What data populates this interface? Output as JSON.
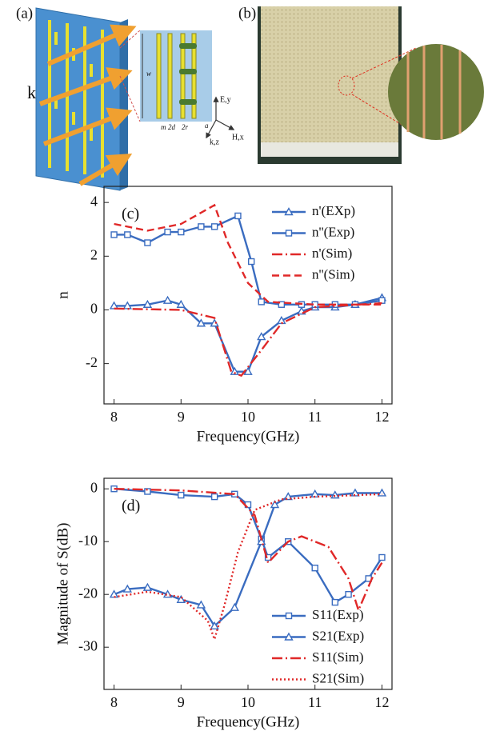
{
  "panels": {
    "a": {
      "label": "(a)",
      "texts": [
        "k",
        "w",
        "m",
        "2d",
        "2r",
        "a",
        "E,y",
        "H,x",
        "k,z"
      ]
    },
    "b": {
      "label": "(b)"
    }
  },
  "chart_data": [
    {
      "type": "line",
      "annotation": "(c)",
      "x_label": "Frequency(GHz)",
      "y_label": "n",
      "xlim": [
        7.85,
        12.15
      ],
      "xticks": [
        8,
        9,
        10,
        11,
        12
      ],
      "ylim": [
        -3.5,
        4.6
      ],
      "yticks": [
        -2,
        0,
        2,
        4
      ],
      "legend": "upper right",
      "series": [
        {
          "name": "n'(EXp)",
          "color": "#3a6cc0",
          "style": "solid",
          "marker": "triangle",
          "x": [
            8.0,
            8.2,
            8.5,
            8.8,
            9.0,
            9.3,
            9.5,
            9.8,
            10.0,
            10.2,
            10.5,
            10.8,
            11.0,
            11.3,
            11.6,
            12.0
          ],
          "values": [
            0.15,
            0.15,
            0.2,
            0.35,
            0.2,
            -0.5,
            -0.5,
            -2.3,
            -2.3,
            -1.0,
            -0.4,
            -0.05,
            0.1,
            0.1,
            0.2,
            0.45
          ]
        },
        {
          "name": "n''(Exp)",
          "color": "#3a6cc0",
          "style": "solid",
          "marker": "square",
          "x": [
            8.0,
            8.2,
            8.5,
            8.8,
            9.0,
            9.3,
            9.5,
            9.85,
            10.05,
            10.2,
            10.5,
            10.8,
            11.0,
            11.3,
            11.6,
            12.0
          ],
          "values": [
            2.8,
            2.8,
            2.5,
            2.9,
            2.9,
            3.1,
            3.1,
            3.5,
            1.8,
            0.3,
            0.2,
            0.2,
            0.2,
            0.2,
            0.2,
            0.35
          ]
        },
        {
          "name": "n'(Sim)",
          "color": "#e02828",
          "style": "dashdot",
          "marker": null,
          "x": [
            8.0,
            9.0,
            9.5,
            9.75,
            9.9,
            10.2,
            10.5,
            11.0,
            12.0
          ],
          "values": [
            0.05,
            0.0,
            -0.3,
            -2.3,
            -2.45,
            -1.5,
            -0.5,
            0.1,
            0.25
          ]
        },
        {
          "name": "n''(Sim)",
          "color": "#e02828",
          "style": "dash",
          "marker": null,
          "x": [
            8.0,
            8.5,
            9.0,
            9.5,
            9.7,
            10.0,
            10.3,
            11.0,
            12.0
          ],
          "values": [
            3.2,
            2.95,
            3.2,
            3.9,
            2.5,
            1.0,
            0.3,
            0.2,
            0.2
          ]
        }
      ]
    },
    {
      "type": "line",
      "annotation": "(d)",
      "x_label": "Frequency(GHz)",
      "y_label": "Magnitude of S(dB)",
      "xlim": [
        7.85,
        12.15
      ],
      "xticks": [
        8,
        9,
        10,
        11,
        12
      ],
      "ylim": [
        -38,
        2
      ],
      "yticks": [
        -30,
        -20,
        -10,
        0
      ],
      "legend": "lower right",
      "series": [
        {
          "name": "S11(Exp)",
          "color": "#3a6cc0",
          "style": "solid",
          "marker": "square",
          "x": [
            8.0,
            8.5,
            9.0,
            9.5,
            9.8,
            10.0,
            10.2,
            10.3,
            10.6,
            11.0,
            11.3,
            11.5,
            11.8,
            12.0
          ],
          "values": [
            0,
            -0.5,
            -1.2,
            -1.5,
            -1,
            -3,
            -9.5,
            -13,
            -10,
            -15,
            -21.5,
            -20,
            -17,
            -13
          ]
        },
        {
          "name": "S21(Exp)",
          "color": "#3a6cc0",
          "style": "solid",
          "marker": "triangle",
          "x": [
            8.0,
            8.2,
            8.5,
            8.8,
            9.0,
            9.3,
            9.5,
            9.8,
            10.2,
            10.4,
            10.6,
            11.0,
            11.3,
            11.6,
            12.0
          ],
          "values": [
            -20,
            -19,
            -18.7,
            -20,
            -21,
            -22,
            -26,
            -22.5,
            -10,
            -3,
            -1.5,
            -1,
            -1.2,
            -0.8,
            -0.8
          ]
        },
        {
          "name": "S11(Sim)",
          "color": "#e02828",
          "style": "dashdot",
          "marker": null,
          "x": [
            8.0,
            9.0,
            9.8,
            10.1,
            10.3,
            10.6,
            10.8,
            11.2,
            11.5,
            11.65,
            11.85,
            12.0
          ],
          "values": [
            0,
            -0.3,
            -1,
            -5,
            -14,
            -10,
            -9,
            -11,
            -17,
            -23,
            -17,
            -14
          ]
        },
        {
          "name": "S21(Sim)",
          "color": "#e02828",
          "style": "dot",
          "marker": null,
          "x": [
            8.0,
            8.5,
            9.0,
            9.4,
            9.5,
            9.65,
            9.85,
            10.1,
            10.5,
            11.0,
            12.0
          ],
          "values": [
            -20.5,
            -19.5,
            -20.5,
            -25,
            -28.5,
            -22,
            -12,
            -4,
            -2,
            -1.5,
            -1
          ]
        }
      ]
    }
  ]
}
